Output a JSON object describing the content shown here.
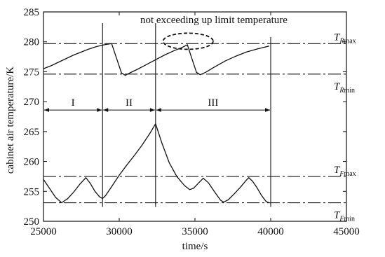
{
  "chart_data": {
    "type": "line",
    "xlabel": "time/s",
    "ylabel": "cabinet air temperature/K",
    "xlim": [
      25000,
      45000
    ],
    "ylim": [
      250,
      285
    ],
    "xticks": [
      25000,
      30000,
      35000,
      40000,
      45000
    ],
    "yticks": [
      250,
      255,
      260,
      265,
      270,
      275,
      280,
      285
    ],
    "grid": false,
    "annotation": "not exceeding up limit temperature",
    "reference_lines": [
      {
        "name": "T_Rmax",
        "main": "T",
        "sub_italic": "R",
        "sub_upright": "max",
        "y": 279.7
      },
      {
        "name": "T_Rmin",
        "main": "T",
        "sub_italic": "R",
        "sub_upright": "min",
        "y": 274.6
      },
      {
        "name": "T_Fmax",
        "main": "T",
        "sub_italic": "F",
        "sub_upright": "max",
        "y": 257.5
      },
      {
        "name": "T_Fmin",
        "main": "T",
        "sub_italic": "F",
        "sub_upright": "min",
        "y": 253.1
      }
    ],
    "phase_boundaries": [
      28900,
      32400,
      40000
    ],
    "phases": [
      {
        "label": "I",
        "from": 25000,
        "to": 28900
      },
      {
        "label": "II",
        "from": 28900,
        "to": 32400
      },
      {
        "label": "III",
        "from": 32400,
        "to": 40000
      }
    ],
    "phase_arrow_y": 268.6,
    "highlight_ellipse": {
      "cx": 34550,
      "cy": 280.1,
      "rx": 1650,
      "ry": 1.35
    },
    "series": [
      {
        "values": [
          [
            25000,
            275.5
          ],
          [
            25500,
            276.0
          ],
          [
            26000,
            276.6
          ],
          [
            26500,
            277.2
          ],
          [
            27000,
            277.8
          ],
          [
            27500,
            278.3
          ],
          [
            28000,
            278.8
          ],
          [
            28500,
            279.2
          ],
          [
            29000,
            279.5
          ],
          [
            29500,
            279.7
          ],
          [
            29950,
            276.3
          ],
          [
            30150,
            274.8
          ],
          [
            30400,
            274.4
          ],
          [
            30700,
            274.8
          ],
          [
            31200,
            275.4
          ],
          [
            31800,
            276.2
          ],
          [
            32400,
            277.0
          ],
          [
            33000,
            277.8
          ],
          [
            33600,
            278.5
          ],
          [
            34100,
            279.0
          ],
          [
            34500,
            279.5
          ],
          [
            34900,
            276.4
          ],
          [
            35100,
            274.9
          ],
          [
            35350,
            274.5
          ],
          [
            35700,
            274.9
          ],
          [
            36300,
            275.8
          ],
          [
            37000,
            276.8
          ],
          [
            37700,
            277.6
          ],
          [
            38400,
            278.3
          ],
          [
            39100,
            278.8
          ],
          [
            39900,
            279.3
          ]
        ]
      },
      {
        "values": [
          [
            25000,
            257.0
          ],
          [
            25400,
            255.5
          ],
          [
            25800,
            254.0
          ],
          [
            26200,
            253.1
          ],
          [
            26600,
            253.8
          ],
          [
            27000,
            254.9
          ],
          [
            27400,
            256.2
          ],
          [
            27800,
            257.3
          ],
          [
            28100,
            256.3
          ],
          [
            28400,
            255.0
          ],
          [
            28700,
            254.1
          ],
          [
            28900,
            253.8
          ],
          [
            29100,
            254.3
          ],
          [
            29500,
            255.8
          ],
          [
            30000,
            257.7
          ],
          [
            30500,
            259.4
          ],
          [
            31000,
            261.0
          ],
          [
            31500,
            262.7
          ],
          [
            32000,
            264.6
          ],
          [
            32400,
            266.3
          ],
          [
            32800,
            263.2
          ],
          [
            33300,
            259.8
          ],
          [
            33800,
            257.5
          ],
          [
            34300,
            256.0
          ],
          [
            34650,
            255.3
          ],
          [
            34900,
            255.5
          ],
          [
            35200,
            256.3
          ],
          [
            35550,
            257.2
          ],
          [
            35900,
            256.4
          ],
          [
            36300,
            254.9
          ],
          [
            36700,
            253.5
          ],
          [
            36900,
            253.2
          ],
          [
            37200,
            253.6
          ],
          [
            37600,
            254.6
          ],
          [
            38000,
            255.7
          ],
          [
            38400,
            256.9
          ],
          [
            38550,
            257.3
          ],
          [
            38800,
            256.7
          ],
          [
            39100,
            255.6
          ],
          [
            39400,
            254.3
          ],
          [
            39700,
            253.3
          ],
          [
            39900,
            253.1
          ]
        ]
      }
    ]
  }
}
